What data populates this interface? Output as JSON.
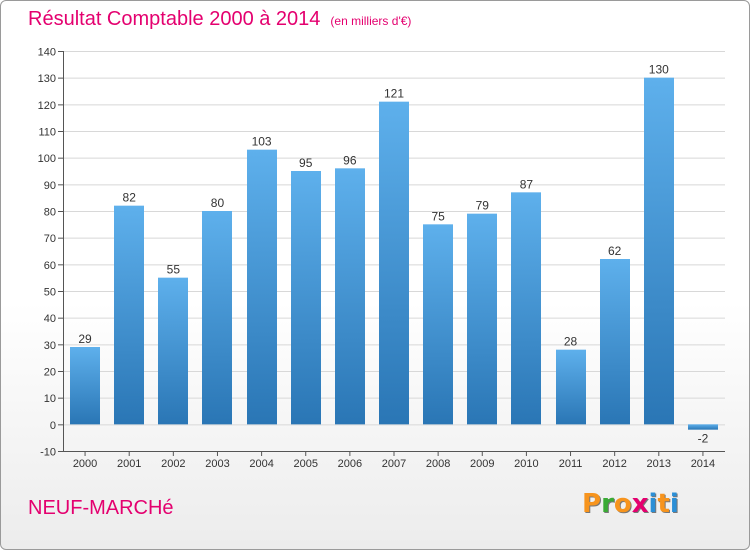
{
  "title": "Résultat Comptable 2000 à 2014",
  "subtitle": "(en milliers d'€)",
  "commune": "NEUF-MARCHé",
  "logo": {
    "letters": [
      "P",
      "r",
      "o",
      "x",
      "i",
      "t",
      "i"
    ],
    "colors": [
      "#f7941d",
      "#3aaa35",
      "#f7941d",
      "#e4006f",
      "#2b8fd6",
      "#f7941d",
      "#2b8fd6"
    ]
  },
  "colors": {
    "bar_top": "#5eb0ec",
    "bar_bottom": "#2a76b5",
    "grid": "#d8d8d8",
    "title": "#e4006f"
  },
  "chart_data": {
    "type": "bar",
    "title": "Résultat Comptable 2000 à 2014",
    "xlabel": "",
    "ylabel": "",
    "categories": [
      "2000",
      "2001",
      "2002",
      "2003",
      "2004",
      "2005",
      "2006",
      "2007",
      "2008",
      "2009",
      "2010",
      "2011",
      "2012",
      "2013",
      "2014"
    ],
    "values": [
      29,
      82,
      55,
      80,
      103,
      95,
      96,
      121,
      75,
      79,
      87,
      28,
      62,
      130,
      -2
    ],
    "value_labels": [
      "29",
      "82",
      "55",
      "80",
      "103",
      "95",
      "96",
      "121",
      "75",
      "79",
      "87",
      "28",
      "62",
      "130",
      "-2"
    ],
    "ylim": [
      -10,
      140
    ],
    "yticks": [
      -10,
      0,
      10,
      20,
      30,
      40,
      50,
      60,
      70,
      80,
      90,
      100,
      110,
      120,
      130,
      140
    ],
    "ytick_labels": [
      "-10",
      "0",
      "10",
      "20",
      "30",
      "40",
      "50",
      "60",
      "70",
      "80",
      "90",
      "100",
      "110",
      "120",
      "130",
      "140"
    ],
    "grid": true
  }
}
